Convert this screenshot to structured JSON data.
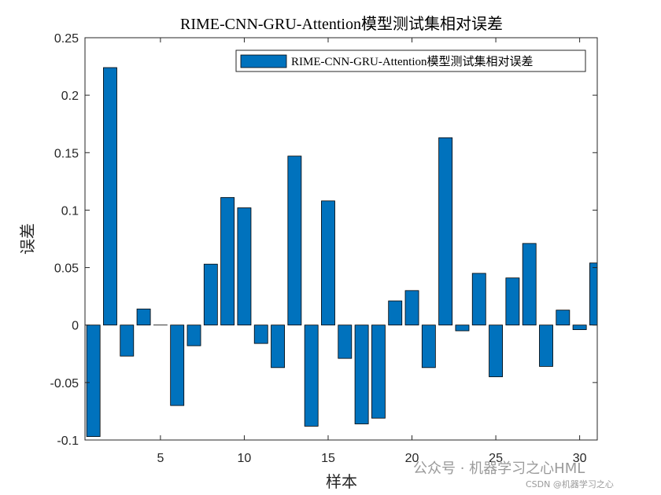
{
  "chart_data": {
    "type": "bar",
    "title": "RIME-CNN-GRU-Attention模型测试集相对误差",
    "xlabel": "样本",
    "ylabel": "误差",
    "xlim": [
      0.5,
      31.05
    ],
    "ylim": [
      -0.1,
      0.25
    ],
    "xticks": [
      5,
      10,
      15,
      20,
      25,
      30
    ],
    "xtick_labels": [
      "5",
      "10",
      "15",
      "20",
      "25",
      "30"
    ],
    "yticks": [
      -0.1,
      -0.05,
      0,
      0.05,
      0.1,
      0.15,
      0.2,
      0.25
    ],
    "ytick_labels": [
      "-0.1",
      "-0.05",
      "0",
      "0.05",
      "0.1",
      "0.15",
      "0.2",
      "0.25"
    ],
    "grid": false,
    "legend_location": "top-right",
    "series": [
      {
        "name": "RIME-CNN-GRU-Attention模型测试集相对误差",
        "color": "#0072BD",
        "x": [
          1,
          2,
          3,
          4,
          5,
          6,
          7,
          8,
          9,
          10,
          11,
          12,
          13,
          14,
          15,
          16,
          17,
          18,
          19,
          20,
          21,
          22,
          23,
          24,
          25,
          26,
          27,
          28,
          29,
          30,
          31
        ],
        "values": [
          -0.097,
          0.224,
          -0.027,
          0.014,
          0.0,
          -0.07,
          -0.018,
          0.053,
          0.111,
          0.102,
          -0.016,
          -0.037,
          0.147,
          -0.088,
          0.108,
          -0.029,
          -0.086,
          -0.081,
          0.021,
          0.03,
          -0.037,
          0.163,
          -0.005,
          0.045,
          -0.045,
          0.041,
          0.071,
          -0.036,
          0.013,
          -0.004,
          0.054
        ]
      }
    ]
  },
  "watermark": {
    "line1": "公众号 · 机器学习之心HML",
    "line2": "CSDN @机器学习之心"
  }
}
